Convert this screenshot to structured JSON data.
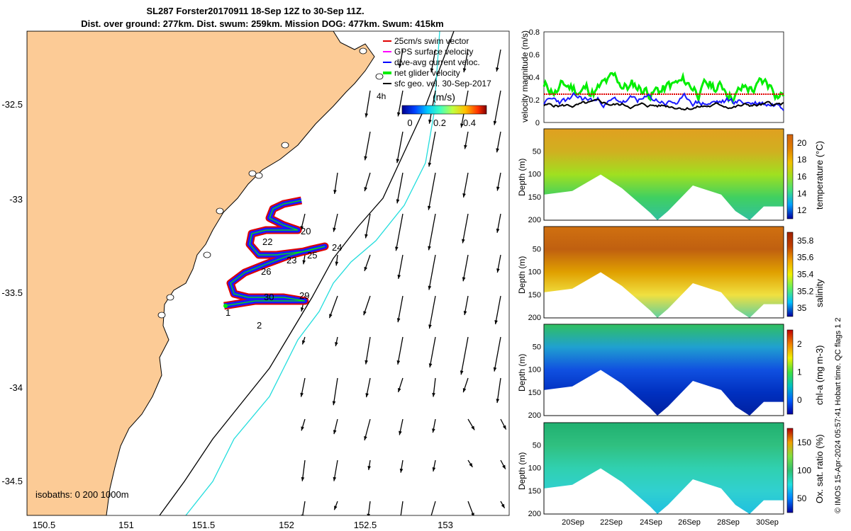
{
  "title": {
    "line1": "SL287 Forster20170911 18-Sep 12Z to 30-Sep 11Z.",
    "line2": "Dist. over ground: 277km. Dist. swum: 259km. Mission DOG: 477km. Swum: 415km"
  },
  "map": {
    "lon_ticks": [
      "150.5",
      "151",
      "151.5",
      "152",
      "152.5",
      "153"
    ],
    "lat_ticks": [
      "-32.5",
      "-33",
      "-33.5",
      "-34",
      "-34.5"
    ],
    "legend": [
      {
        "label": "25cm/s swim vector",
        "color": "#e00000"
      },
      {
        "label": "GPS surface velocity",
        "color": "#ff00ff"
      },
      {
        "label": "dive-avg current veloc.",
        "color": "#0000ff"
      },
      {
        "label": "net glider velocity",
        "color": "#00ee00"
      },
      {
        "label": "sfc geo. vel. 30-Sep-2017",
        "color": "#000000"
      }
    ],
    "legend_h": "4h",
    "colorbar_label": "(m/s)",
    "colorbar_ticks": [
      "0",
      "0.2",
      "0.4"
    ],
    "isobaths": "isobaths: 0   200  1000m",
    "day_labels": [
      "1",
      "2",
      "20",
      "22",
      "23",
      "24",
      "25",
      "26",
      "29",
      "30"
    ],
    "land_color": "#fccb96",
    "isobath_200_color": "#000000",
    "isobath_1000_color": "#22dddd"
  },
  "panels": {
    "velocity": {
      "ylabel": "velocity magnitude (m/s)",
      "yticks": [
        "0",
        "0.2",
        "0.4",
        "0.6",
        "0.8"
      ]
    },
    "temperature": {
      "ylabel": "Depth (m)",
      "cblabel": "temperature (°C)",
      "cbticks": [
        "12",
        "14",
        "16",
        "18",
        "20"
      ]
    },
    "salinity": {
      "ylabel": "Depth (m)",
      "cblabel": "salinity",
      "cbticks": [
        "35",
        "35.2",
        "35.4",
        "35.6",
        "35.8"
      ]
    },
    "chla": {
      "ylabel": "Depth (m)",
      "cblabel": "chl-a (mg m-3)",
      "cbticks": [
        "0",
        "1",
        "2"
      ]
    },
    "oxygen": {
      "ylabel": "Depth (m)",
      "cblabel": "Ox. sat. ratio (%)",
      "cbticks": [
        "50",
        "100",
        "150"
      ]
    },
    "depth_ticks": [
      "50",
      "100",
      "150",
      "200"
    ],
    "x_ticks": [
      "20Sep",
      "22Sep",
      "24Sep",
      "26Sep",
      "28Sep",
      "30Sep"
    ]
  },
  "credit": "© IMOS 15-Apr-2024 05:57:41 Hobart time. QC flags 1  2"
}
